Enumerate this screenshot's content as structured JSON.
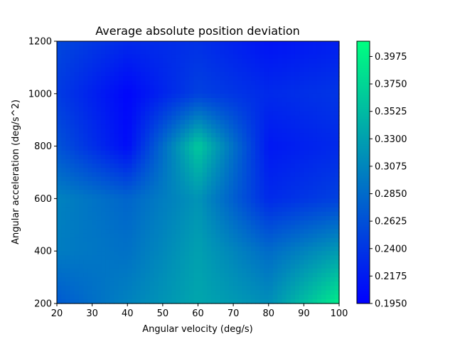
{
  "chart_data": {
    "type": "heatmap",
    "title": "Average absolute position deviation",
    "xlabel": "Angular velocity (deg/s)",
    "ylabel": "Angular acceleration (deg/s^2)",
    "xlim": [
      20,
      100
    ],
    "ylim": [
      200,
      1200
    ],
    "x": [
      20,
      40,
      60,
      80,
      100
    ],
    "y": [
      200,
      400,
      600,
      800,
      1000,
      1200
    ],
    "z": [
      [
        0.27,
        0.305,
        0.335,
        0.315,
        0.395
      ],
      [
        0.3,
        0.29,
        0.33,
        0.285,
        0.325
      ],
      [
        0.305,
        0.28,
        0.32,
        0.23,
        0.25
      ],
      [
        0.265,
        0.205,
        0.365,
        0.215,
        0.23
      ],
      [
        0.245,
        0.2,
        0.25,
        0.23,
        0.24
      ],
      [
        0.255,
        0.23,
        0.235,
        0.21,
        0.22
      ]
    ],
    "x_ticks": [
      "20",
      "30",
      "40",
      "50",
      "60",
      "70",
      "80",
      "90",
      "100"
    ],
    "y_ticks": [
      "200",
      "400",
      "600",
      "800",
      "1000",
      "1200"
    ],
    "colorbar": {
      "min": 0.195,
      "max": 0.41,
      "ticks": [
        "0.1950",
        "0.2175",
        "0.2400",
        "0.2625",
        "0.2850",
        "0.3075",
        "0.3300",
        "0.3525",
        "0.3750",
        "0.3975"
      ]
    },
    "colormap": "winter",
    "colormap_low": "#0000ff",
    "colormap_high": "#00ff80",
    "grid": false
  }
}
